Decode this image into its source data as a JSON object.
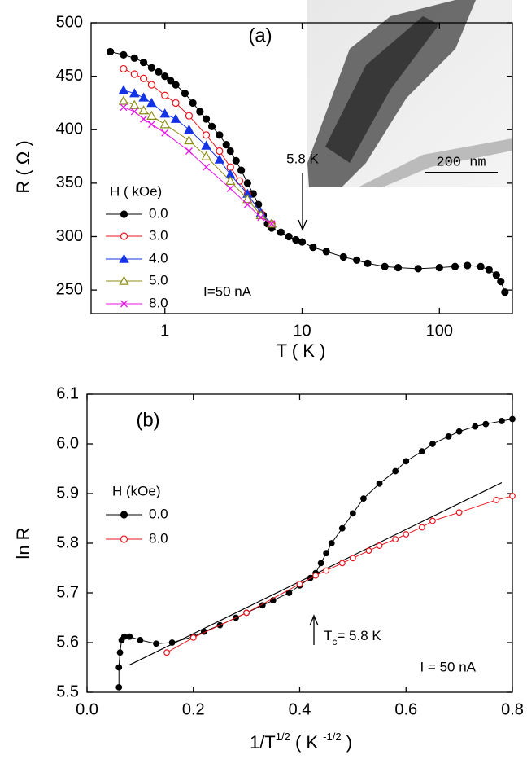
{
  "chart_data": [
    {
      "type": "line",
      "xlog": true,
      "xlabel": "T ( K )",
      "ylabel": "R ( Ω )",
      "xlim": [
        0.29,
        340
      ],
      "ylim": [
        228,
        500
      ],
      "xticks": [
        1,
        10,
        100
      ],
      "yticks": [
        250,
        300,
        350,
        400,
        450,
        500
      ],
      "legend_title": "H ( kOe)",
      "annotations": [
        "(a)",
        "5.8 K",
        "I=50 nA",
        "200 nm"
      ],
      "series": [
        {
          "name": "0.0",
          "color": "#000000",
          "marker": "circle-filled",
          "x": [
            0.4,
            0.5,
            0.6,
            0.7,
            0.8,
            0.9,
            1.0,
            1.1,
            1.2,
            1.4,
            1.6,
            1.8,
            2.0,
            2.2,
            2.5,
            2.8,
            3.0,
            3.3,
            3.6,
            4.0,
            4.4,
            4.8,
            5.2,
            5.6,
            6,
            7,
            8,
            9,
            10,
            12,
            15,
            20,
            25,
            30,
            40,
            50,
            70,
            100,
            130,
            160,
            200,
            230,
            260,
            280,
            300
          ],
          "values": [
            473,
            470,
            467,
            463,
            458,
            454,
            450,
            446,
            442,
            434,
            425,
            417,
            410,
            403,
            395,
            386,
            380,
            371,
            362,
            350,
            340,
            330,
            320,
            312,
            308,
            304,
            300,
            297,
            295,
            290,
            286,
            281,
            278,
            275,
            272,
            271,
            270,
            271,
            272,
            273,
            272,
            269,
            264,
            258,
            248
          ]
        },
        {
          "name": "3.0",
          "color": "#e8141c",
          "marker": "circle-open",
          "x": [
            0.5,
            0.6,
            0.7,
            0.8,
            1.0,
            1.2,
            1.5,
            2.0,
            2.5,
            3.0,
            3.5,
            4,
            5,
            6
          ],
          "values": [
            457,
            452,
            448,
            442,
            432,
            425,
            413,
            395,
            380,
            365,
            352,
            340,
            322,
            312
          ]
        },
        {
          "name": "4.0",
          "color": "#1432e6",
          "marker": "triangle-filled",
          "x": [
            0.5,
            0.6,
            0.7,
            0.8,
            1.0,
            1.2,
            1.5,
            2,
            2.5,
            3,
            4,
            5,
            6
          ],
          "values": [
            437,
            434,
            430,
            425,
            415,
            410,
            400,
            385,
            372,
            358,
            340,
            322,
            312
          ]
        },
        {
          "name": "5.0",
          "color": "#8c8c14",
          "marker": "triangle-open",
          "x": [
            0.5,
            0.6,
            0.7,
            0.8,
            1,
            1.5,
            2,
            3,
            4,
            5,
            6
          ],
          "values": [
            427,
            423,
            418,
            413,
            405,
            390,
            375,
            352,
            335,
            320,
            312
          ]
        },
        {
          "name": "8.0",
          "color": "#e614e6",
          "marker": "x",
          "x": [
            0.5,
            0.6,
            0.7,
            0.8,
            1,
            1.5,
            2,
            3,
            4,
            5,
            6
          ],
          "values": [
            421,
            417,
            410,
            405,
            397,
            380,
            365,
            345,
            330,
            318,
            312
          ]
        }
      ]
    },
    {
      "type": "line",
      "xlog": false,
      "xlabel": [
        "1/T",
        "1/2",
        " ( K ",
        "-1/2",
        " )"
      ],
      "ylabel": "ln R",
      "xlim": [
        0,
        0.8
      ],
      "ylim": [
        5.5,
        6.1
      ],
      "xticks": [
        {
          "value": 0,
          "label": "0.0"
        },
        0.2,
        0.4,
        0.6,
        0.8
      ],
      "yticks": [
        5.5,
        5.6,
        5.7,
        5.8,
        5.9,
        {
          "value": 6,
          "label": "6.0"
        },
        6.1
      ],
      "legend_title": "H (kOe)",
      "annotations": [
        "(b)",
        "I = 50 nA"
      ],
      "tc_label": [
        "T",
        "c",
        "= 5.8 K"
      ],
      "lines": [
        {
          "color": "#000000",
          "x": [
            0.08,
            0.78
          ],
          "values": [
            5.555,
            5.922
          ]
        }
      ],
      "series": [
        {
          "name": "0.0",
          "color": "#000000",
          "marker": "circle-filled",
          "x": [
            0.06,
            0.06,
            0.062,
            0.065,
            0.07,
            0.08,
            0.1,
            0.13,
            0.16,
            0.2,
            0.22,
            0.25,
            0.28,
            0.3,
            0.33,
            0.35,
            0.38,
            0.4,
            0.42,
            0.43,
            0.44,
            0.45,
            0.46,
            0.48,
            0.5,
            0.52,
            0.55,
            0.58,
            0.6,
            0.63,
            0.65,
            0.68,
            0.7,
            0.73,
            0.75,
            0.78,
            0.8
          ],
          "values": [
            5.51,
            5.55,
            5.58,
            5.605,
            5.612,
            5.612,
            5.605,
            5.598,
            5.6,
            5.612,
            5.622,
            5.635,
            5.65,
            5.66,
            5.675,
            5.685,
            5.7,
            5.715,
            5.73,
            5.74,
            5.76,
            5.78,
            5.8,
            5.83,
            5.86,
            5.89,
            5.92,
            5.945,
            5.965,
            5.985,
            6.0,
            6.015,
            6.025,
            6.035,
            6.04,
            6.046,
            6.05
          ]
        },
        {
          "name": "8.0",
          "color": "#e8141c",
          "marker": "circle-open",
          "x": [
            0.15,
            0.2,
            0.3,
            0.4,
            0.43,
            0.45,
            0.48,
            0.5,
            0.53,
            0.55,
            0.58,
            0.6,
            0.63,
            0.65,
            0.7,
            0.77,
            0.8
          ],
          "values": [
            5.58,
            5.61,
            5.66,
            5.718,
            5.735,
            5.745,
            5.76,
            5.77,
            5.785,
            5.795,
            5.808,
            5.818,
            5.832,
            5.845,
            5.862,
            5.887,
            5.895
          ]
        }
      ]
    }
  ]
}
